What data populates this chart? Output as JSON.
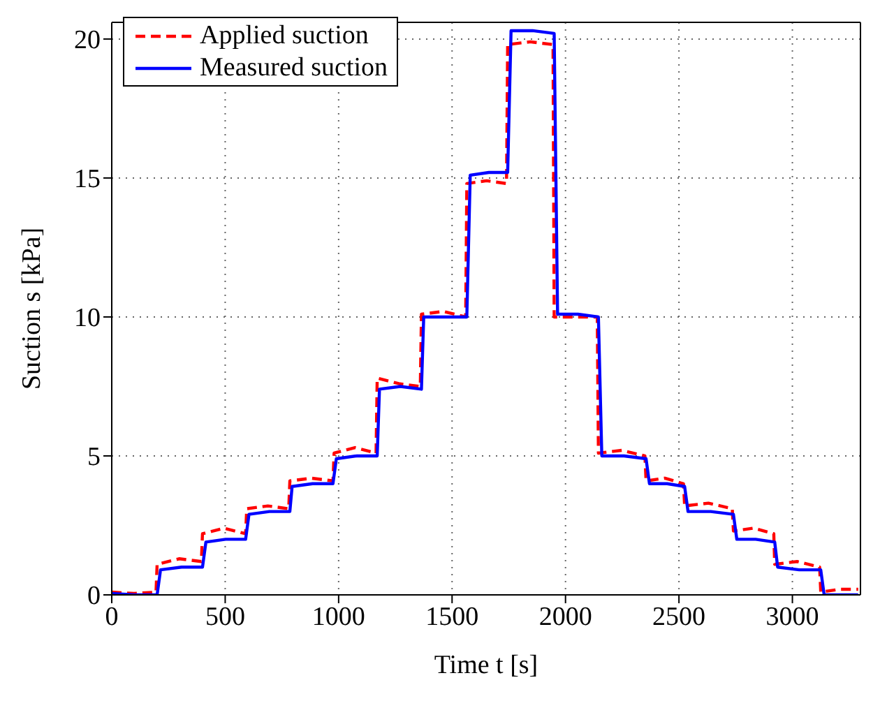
{
  "chart_data": {
    "type": "line",
    "xlabel": "Time t [s]",
    "ylabel": "Suction s [kPa]",
    "xlim": [
      0,
      3300
    ],
    "xticks": [
      0,
      500,
      1000,
      1500,
      2000,
      2500,
      3000
    ],
    "ylim": [
      0,
      20.6
    ],
    "yticks": [
      0,
      5,
      10,
      15,
      20
    ],
    "grid": true,
    "legend": "top left",
    "marker": "none",
    "series": [
      {
        "name": "Applied suction",
        "color": "#ff0000",
        "line_style": "dashed",
        "x": [
          0,
          98,
          195,
          200,
          298,
          395,
          400,
          495,
          590,
          595,
          688,
          780,
          785,
          880,
          975,
          980,
          1072,
          1165,
          1170,
          1265,
          1360,
          1365,
          1462,
          1560,
          1565,
          1652,
          1740,
          1745,
          1845,
          1945,
          1950,
          2045,
          2140,
          2145,
          2248,
          2350,
          2355,
          2438,
          2520,
          2525,
          2630,
          2735,
          2740,
          2829,
          2918,
          2922,
          3021,
          3120,
          3125,
          3208,
          3290
        ],
        "values": [
          0.1,
          0.05,
          0.1,
          1.1,
          1.3,
          1.2,
          2.2,
          2.4,
          2.2,
          3.1,
          3.2,
          3.1,
          4.1,
          4.2,
          4.1,
          5.1,
          5.3,
          5.1,
          7.8,
          7.6,
          7.5,
          10.1,
          10.2,
          10,
          14.8,
          14.9,
          14.8,
          19.8,
          19.9,
          19.8,
          10,
          10,
          10,
          5.1,
          5.2,
          5.0,
          4.1,
          4.2,
          4.0,
          3.2,
          3.3,
          3.1,
          2.3,
          2.4,
          2.2,
          1.1,
          1.2,
          1.0,
          0.1,
          0.2,
          0.2
        ]
      },
      {
        "name": "Measured suction",
        "color": "#0000ff",
        "line_style": "solid",
        "x": [
          0,
          100,
          200,
          215,
          308,
          400,
          415,
          502,
          590,
          605,
          695,
          785,
          795,
          885,
          975,
          990,
          1080,
          1170,
          1180,
          1272,
          1365,
          1375,
          1470,
          1565,
          1580,
          1662,
          1745,
          1760,
          1855,
          1950,
          1965,
          2055,
          2145,
          2160,
          2258,
          2355,
          2370,
          2448,
          2525,
          2540,
          2640,
          2740,
          2755,
          2838,
          2922,
          2935,
          3030,
          3125,
          3140,
          3215,
          3290
        ],
        "values": [
          0.05,
          0,
          0,
          0.9,
          1.0,
          1.0,
          1.9,
          2.0,
          2.0,
          2.9,
          3.0,
          3.0,
          3.9,
          4.0,
          4.0,
          4.9,
          5.0,
          5.0,
          7.4,
          7.5,
          7.4,
          10,
          10,
          10,
          15.1,
          15.2,
          15.2,
          20.3,
          20.3,
          20.2,
          10.1,
          10.1,
          10.0,
          5.0,
          5.0,
          4.9,
          4.0,
          4.0,
          3.9,
          3.0,
          3.0,
          2.9,
          2.0,
          2.0,
          1.9,
          1.0,
          0.9,
          0.9,
          0,
          0,
          0
        ]
      }
    ]
  }
}
